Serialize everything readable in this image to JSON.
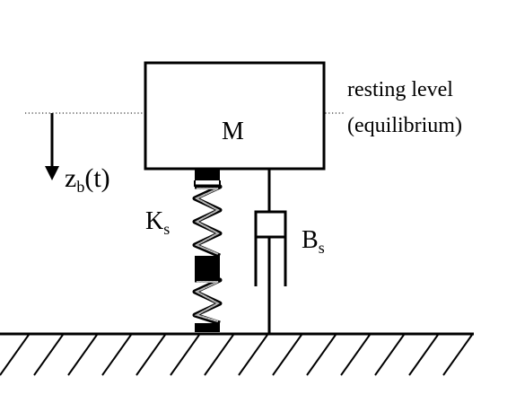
{
  "diagram": {
    "mass_label": "M",
    "resting_level_label": "resting level",
    "equilibrium_label": "(equilibrium)",
    "displacement_label": {
      "base": "z",
      "subscript": "b",
      "suffix": "(t)"
    },
    "spring_label": {
      "base": "K",
      "subscript": "s"
    },
    "damper_label": {
      "base": "B",
      "subscript": "s"
    }
  },
  "icons": {
    "displacement_arrow": "down-arrow-icon",
    "spring": "spring-icon",
    "damper": "damper-icon",
    "ground": "ground-hatch-icon"
  },
  "colors": {
    "stroke": "#000000",
    "spring_fill": "#bdbdbd",
    "background": "#ffffff"
  }
}
